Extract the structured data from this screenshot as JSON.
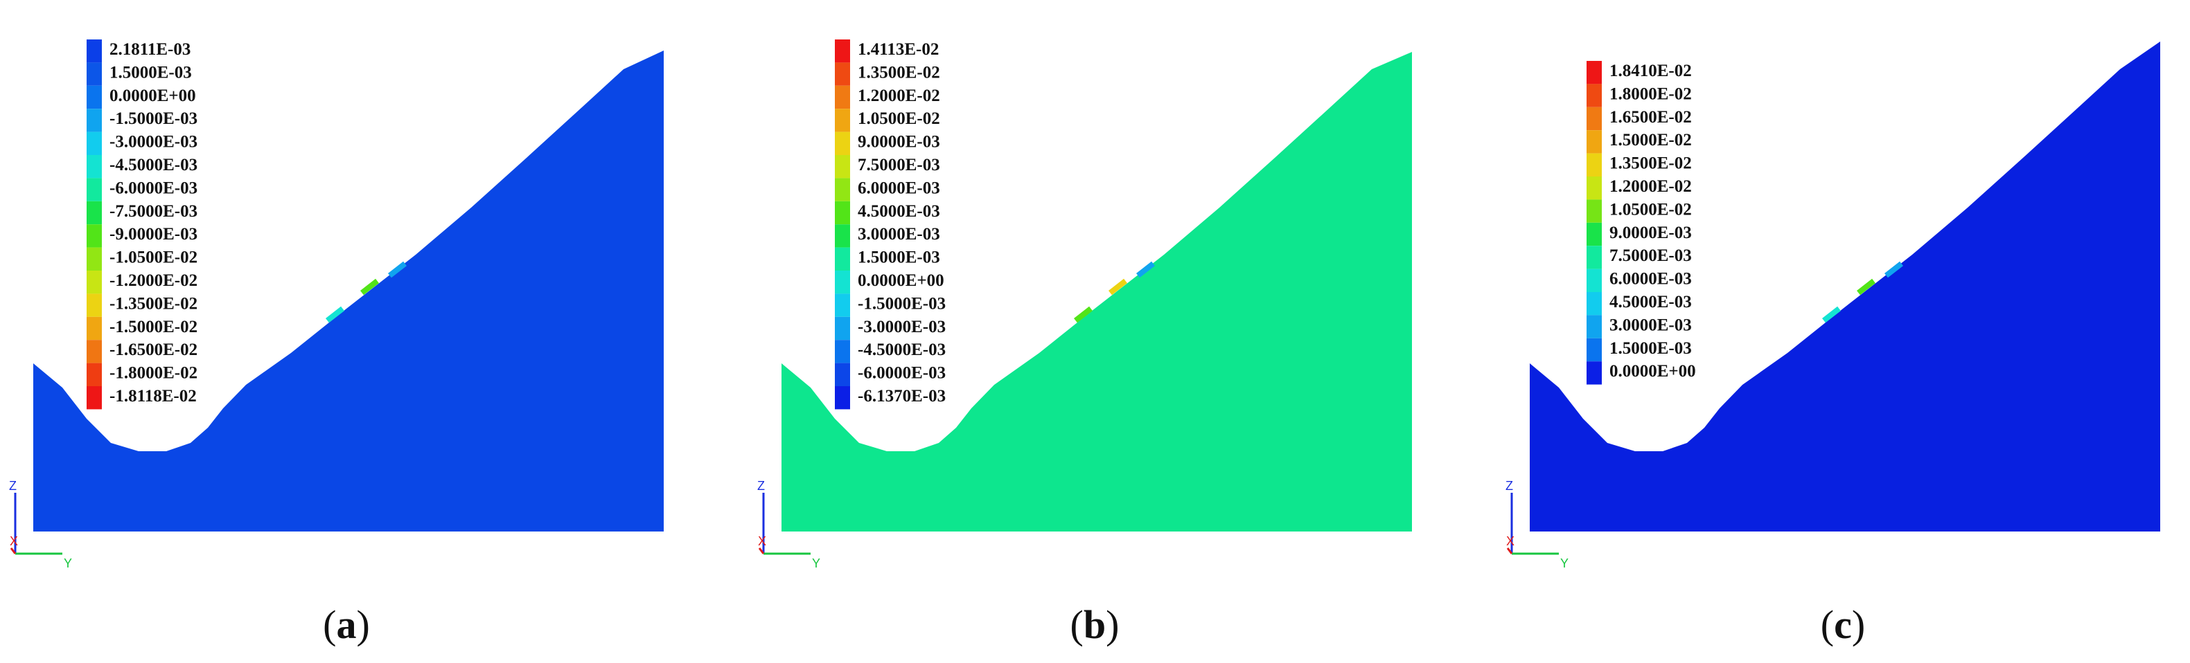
{
  "panels": [
    {
      "caption": {
        "open": "(",
        "letter": "a",
        "close": ")"
      },
      "fill_color": "#0a47e6",
      "legend": [
        {
          "label": "2.1811E-03",
          "color": "#0b3fe8"
        },
        {
          "label": "1.5000E-03",
          "color": "#0c56e8"
        },
        {
          "label": "0.0000E+00",
          "color": "#0a74ee"
        },
        {
          "label": "-1.5000E-03",
          "color": "#10a4ef"
        },
        {
          "label": "-3.0000E-03",
          "color": "#12ccee"
        },
        {
          "label": "-4.5000E-03",
          "color": "#14e3d2"
        },
        {
          "label": "-6.0000E-03",
          "color": "#12e99e"
        },
        {
          "label": "-7.5000E-03",
          "color": "#19e34a"
        },
        {
          "label": "-9.0000E-03",
          "color": "#52e418"
        },
        {
          "label": "-1.0500E-02",
          "color": "#92e614"
        },
        {
          "label": "-1.2000E-02",
          "color": "#c8e514"
        },
        {
          "label": "-1.3500E-02",
          "color": "#ecd313"
        },
        {
          "label": "-1.5000E-02",
          "color": "#f0a612"
        },
        {
          "label": "-1.6500E-02",
          "color": "#f07613"
        },
        {
          "label": "-1.8000E-02",
          "color": "#ef3d12"
        },
        {
          "label": "-1.8118E-02",
          "color": "#ee1616"
        }
      ],
      "axes": {
        "z": "Z",
        "x": "X",
        "y": "Y"
      }
    },
    {
      "caption": {
        "open": "(",
        "letter": "b",
        "close": ")"
      },
      "fill_color": "#0de68e",
      "legend": [
        {
          "label": "1.4113E-02",
          "color": "#ee1616"
        },
        {
          "label": "1.3500E-02",
          "color": "#ef4a12"
        },
        {
          "label": "1.2000E-02",
          "color": "#f07a13"
        },
        {
          "label": "1.0500E-02",
          "color": "#f0a612"
        },
        {
          "label": "9.0000E-03",
          "color": "#ecd313"
        },
        {
          "label": "7.5000E-03",
          "color": "#c8e514"
        },
        {
          "label": "6.0000E-03",
          "color": "#92e614"
        },
        {
          "label": "4.5000E-03",
          "color": "#52e418"
        },
        {
          "label": "3.0000E-03",
          "color": "#19e34a"
        },
        {
          "label": "1.5000E-03",
          "color": "#12e99e"
        },
        {
          "label": "0.0000E+00",
          "color": "#14e3d2"
        },
        {
          "label": "-1.5000E-03",
          "color": "#12ccee"
        },
        {
          "label": "-3.0000E-03",
          "color": "#10a4ef"
        },
        {
          "label": "-4.5000E-03",
          "color": "#0a74ee"
        },
        {
          "label": "-6.0000E-03",
          "color": "#0c46e8"
        },
        {
          "label": "-6.1370E-03",
          "color": "#0b1fe6"
        }
      ],
      "axes": {
        "z": "Z",
        "x": "X",
        "y": "Y"
      }
    },
    {
      "caption": {
        "open": "(",
        "letter": "c",
        "close": ")"
      },
      "fill_color": "#0820e0",
      "legend": [
        {
          "label": "1.8410E-02",
          "color": "#ee1616"
        },
        {
          "label": "1.8000E-02",
          "color": "#ef4a12"
        },
        {
          "label": "1.6500E-02",
          "color": "#f07a13"
        },
        {
          "label": "1.5000E-02",
          "color": "#f0a612"
        },
        {
          "label": "1.3500E-02",
          "color": "#ecd313"
        },
        {
          "label": "1.2000E-02",
          "color": "#c8e514"
        },
        {
          "label": "1.0500E-02",
          "color": "#76e416"
        },
        {
          "label": "9.0000E-03",
          "color": "#19e34a"
        },
        {
          "label": "7.5000E-03",
          "color": "#12e99e"
        },
        {
          "label": "6.0000E-03",
          "color": "#14e3d2"
        },
        {
          "label": "4.5000E-03",
          "color": "#12ccee"
        },
        {
          "label": "3.0000E-03",
          "color": "#10a4ef"
        },
        {
          "label": "1.5000E-03",
          "color": "#0a74ee"
        },
        {
          "label": "0.0000E+00",
          "color": "#0b1fe6"
        }
      ],
      "axes": {
        "z": "Z",
        "x": "X",
        "y": "Y"
      }
    }
  ]
}
